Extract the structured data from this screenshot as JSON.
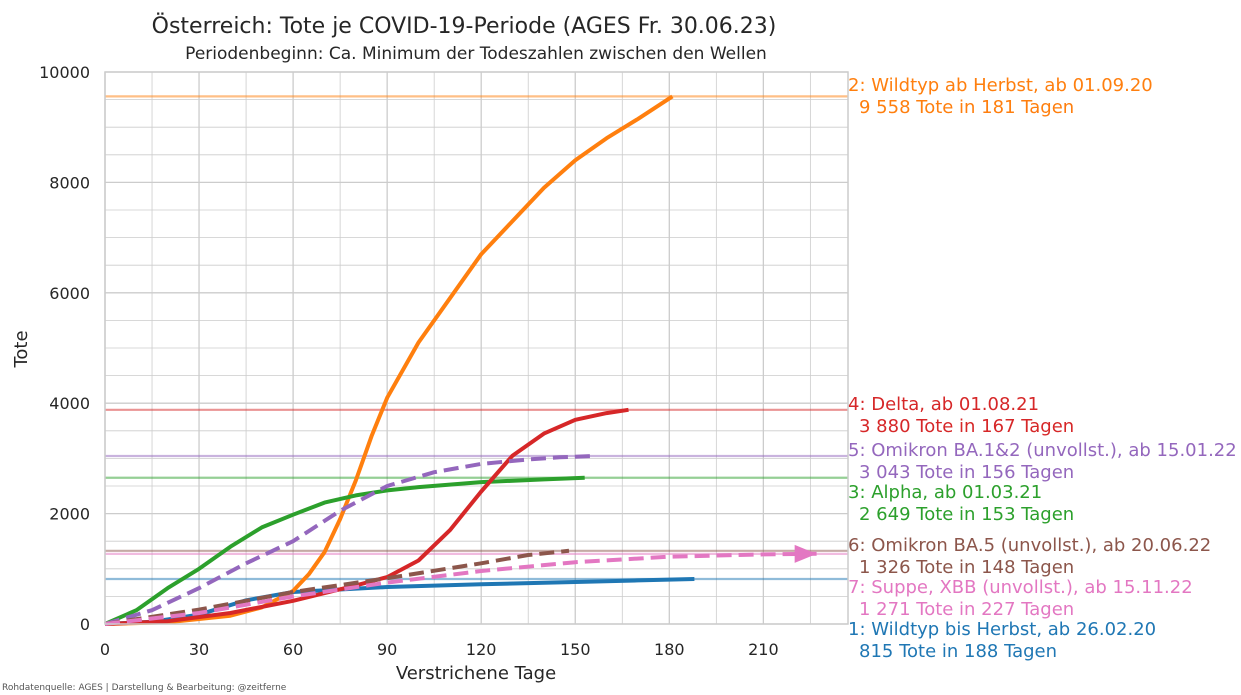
{
  "chart_data": {
    "type": "line",
    "title": "Österreich: Tote je COVID-19-Periode (AGES Fr. 30.06.23)",
    "subtitle": "Periodenbeginn: Ca. Minimum der Todeszahlen zwischen den Wellen",
    "xlabel": "Verstrichene Tage",
    "ylabel": "Tote",
    "xlim": [
      0,
      237
    ],
    "ylim": [
      0,
      10000
    ],
    "xticks": [
      0,
      30,
      60,
      90,
      120,
      150,
      180,
      210
    ],
    "yticks": [
      0,
      2000,
      4000,
      6000,
      8000,
      10000
    ],
    "grid": true,
    "source": "Rohdatenquelle: AGES | Darstellung & Bearbeitung: @zeitferne",
    "series": [
      {
        "id": "1",
        "name": "1: Wildtyp bis Herbst, ab 26.02.20",
        "summary": "815 Tote in 188 Tagen",
        "final": 815,
        "color": "#1f77b4",
        "dashed": false,
        "x": [
          0,
          15,
          30,
          45,
          60,
          90,
          120,
          150,
          170,
          188
        ],
        "y": [
          0,
          40,
          170,
          430,
          580,
          670,
          720,
          760,
          790,
          815
        ]
      },
      {
        "id": "2",
        "name": "2: Wildtyp ab Herbst, ab 01.09.20",
        "summary": "9 558 Tote in 181 Tagen",
        "final": 9558,
        "color": "#ff7f0e",
        "dashed": false,
        "x": [
          0,
          20,
          40,
          50,
          60,
          65,
          70,
          75,
          80,
          85,
          90,
          100,
          110,
          120,
          130,
          140,
          150,
          160,
          170,
          181
        ],
        "y": [
          0,
          30,
          150,
          300,
          600,
          900,
          1300,
          1900,
          2600,
          3400,
          4100,
          5100,
          5900,
          6700,
          7300,
          7900,
          8400,
          8800,
          9150,
          9558
        ]
      },
      {
        "id": "3",
        "name": "3: Alpha, ab 01.03.21",
        "summary": "2 649 Tote in 153 Tagen",
        "final": 2649,
        "color": "#2ca02c",
        "dashed": false,
        "x": [
          0,
          10,
          20,
          30,
          40,
          50,
          60,
          70,
          80,
          90,
          100,
          120,
          140,
          153
        ],
        "y": [
          0,
          250,
          650,
          1000,
          1400,
          1750,
          1980,
          2200,
          2330,
          2420,
          2480,
          2570,
          2620,
          2649
        ]
      },
      {
        "id": "4",
        "name": "4: Delta, ab 01.08.21",
        "summary": "3 880 Tote in 167 Tagen",
        "final": 3880,
        "color": "#d62728",
        "dashed": false,
        "x": [
          0,
          20,
          40,
          60,
          80,
          90,
          100,
          110,
          120,
          130,
          140,
          150,
          160,
          167
        ],
        "y": [
          0,
          50,
          200,
          420,
          700,
          850,
          1150,
          1700,
          2400,
          3050,
          3450,
          3700,
          3820,
          3880
        ]
      },
      {
        "id": "5",
        "name": "5: Omikron BA.1&2 (unvollst.), ab 15.01.22",
        "summary": "3 043 Tote in 156 Tagen",
        "final": 3043,
        "color": "#9467bd",
        "dashed": true,
        "x": [
          0,
          15,
          30,
          45,
          60,
          75,
          90,
          105,
          120,
          135,
          145,
          156
        ],
        "y": [
          0,
          250,
          650,
          1100,
          1500,
          2050,
          2500,
          2750,
          2900,
          2980,
          3020,
          3043
        ]
      },
      {
        "id": "6",
        "name": "6: Omikron BA.5 (unvollst.), ab 20.06.22",
        "summary": "1 326 Tote in 148 Tagen",
        "final": 1326,
        "color": "#8c564b",
        "dashed": true,
        "x": [
          0,
          30,
          60,
          90,
          120,
          135,
          148
        ],
        "y": [
          0,
          260,
          580,
          830,
          1100,
          1250,
          1326
        ]
      },
      {
        "id": "7",
        "name": "7: Suppe, XBB (unvollst.), ab 15.11.22",
        "summary": "1 271 Tote in 227 Tagen",
        "final": 1271,
        "color": "#e377c2",
        "dashed": true,
        "x": [
          0,
          30,
          60,
          90,
          120,
          150,
          180,
          210,
          227
        ],
        "y": [
          0,
          200,
          500,
          750,
          960,
          1120,
          1220,
          1260,
          1271
        ]
      }
    ],
    "annotation_order": [
      "2",
      "4",
      "5",
      "3",
      "6",
      "7",
      "1"
    ]
  }
}
